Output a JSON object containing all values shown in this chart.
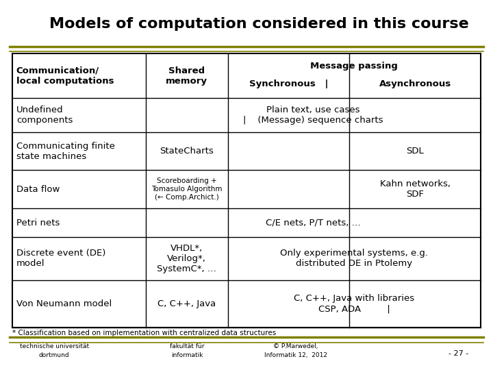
{
  "title": "Models of computation considered in this course",
  "background_color": "#ffffff",
  "title_color": "#000000",
  "olive_color": "#808000",
  "table_border_color": "#000000",
  "header_row": {
    "col1": "Communication/\nlocal computations",
    "col2": "Shared\nmemory",
    "col3_sub1": "Message passing\nSynchronous",
    "col3_sub2": "Asynchronous",
    "col3_header": "Message passing",
    "col3_sync": "Synchronous   |",
    "col3_async": "Asynchronous"
  },
  "rows": [
    {
      "col1": "Undefined\ncomponents",
      "col2": "",
      "col3": "Plain text, use cases\n| (Message) sequence charts",
      "col2_span": true
    },
    {
      "col1": "Communicating finite\nstate machines",
      "col2": "StateCharts",
      "col3_sync": "",
      "col3_async": "SDL",
      "col2_span": false
    },
    {
      "col1": "Data flow",
      "col2": "Scoreboarding +\nTomasulo Algorithm\n(← Comp.Archict.)",
      "col3_sync": "",
      "col3_async": "Kahn networks,\nSDF",
      "col2_span": false,
      "col2_small": true
    },
    {
      "col1": "Petri nets",
      "col2": "",
      "col3": "C/E nets, P/T nets, …",
      "col2_span": true
    },
    {
      "col1": "Discrete event (DE)\nmodel",
      "col2": "VHDL*,\nVerilog*,\nSystemC*, …",
      "col3": "Only experimental systems, e.g.\ndistributed DE in Ptolemy",
      "col2_span": false,
      "col3_span": true
    },
    {
      "col1": "Von Neumann model",
      "col2": "C, C++, Java",
      "col3": "C, C++, Java with libraries\nCSP, ADA    |",
      "col2_span": false,
      "col3_span": true
    }
  ],
  "footnote": "* Classification based on implementation with centralized data structures",
  "footer_left1": "technische universität",
  "footer_left2": "dortmund",
  "footer_mid1": "fakultät für",
  "footer_mid2": "informatik",
  "footer_right1": "© P.Marwedel,",
  "footer_right2": "Informatik 12,  2012",
  "footer_page": "- 27 -"
}
